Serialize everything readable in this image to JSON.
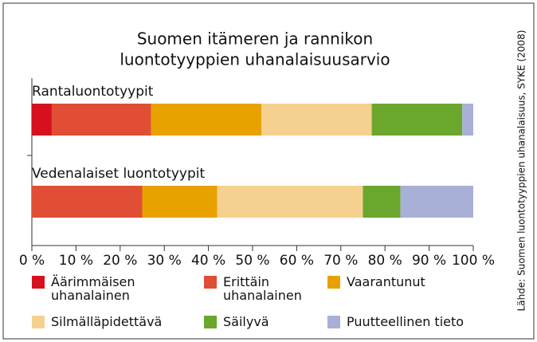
{
  "chart_data": {
    "type": "stacked-barh",
    "title": [
      "Suomen itämeren ja rannikon",
      "luontotyyppien uhanalaisuusarvio"
    ],
    "source": "Lähde: Suomen luontotyyppien uhanalaisuus, SYKE (2008)",
    "categories": [
      "Rantaluontotyypit",
      "Vedenalaiset luontotyypit"
    ],
    "series": [
      {
        "name": "Äärimmäisen uhanalainen",
        "color": "#d7101f",
        "values": [
          4.5,
          0
        ]
      },
      {
        "name": "Erittäin uhanalainen",
        "color": "#e04e35",
        "values": [
          22.5,
          25
        ]
      },
      {
        "name": "Vaarantunut",
        "color": "#e8a200",
        "values": [
          25,
          17
        ]
      },
      {
        "name": "Silmälläpidettävä",
        "color": "#f5d08f",
        "values": [
          25,
          33
        ]
      },
      {
        "name": "Säilyvä",
        "color": "#6aa72c",
        "values": [
          20.5,
          8.5
        ]
      },
      {
        "name": "Puutteellinen tieto",
        "color": "#a9b0d8",
        "values": [
          2.5,
          16.5
        ]
      }
    ],
    "xlim": [
      0,
      100
    ],
    "xticks": [
      {
        "value": 0,
        "label": "0 %"
      },
      {
        "value": 10,
        "label": "10 %"
      },
      {
        "value": 20,
        "label": "20 %"
      },
      {
        "value": 30,
        "label": "30 %"
      },
      {
        "value": 40,
        "label": "40 %"
      },
      {
        "value": 50,
        "label": "50 %"
      },
      {
        "value": 60,
        "label": "60 %"
      },
      {
        "value": 70,
        "label": "70 %"
      },
      {
        "value": 80,
        "label": "80 %"
      },
      {
        "value": 90,
        "label": "90 %"
      },
      {
        "value": 100,
        "label": "100 %"
      }
    ]
  }
}
